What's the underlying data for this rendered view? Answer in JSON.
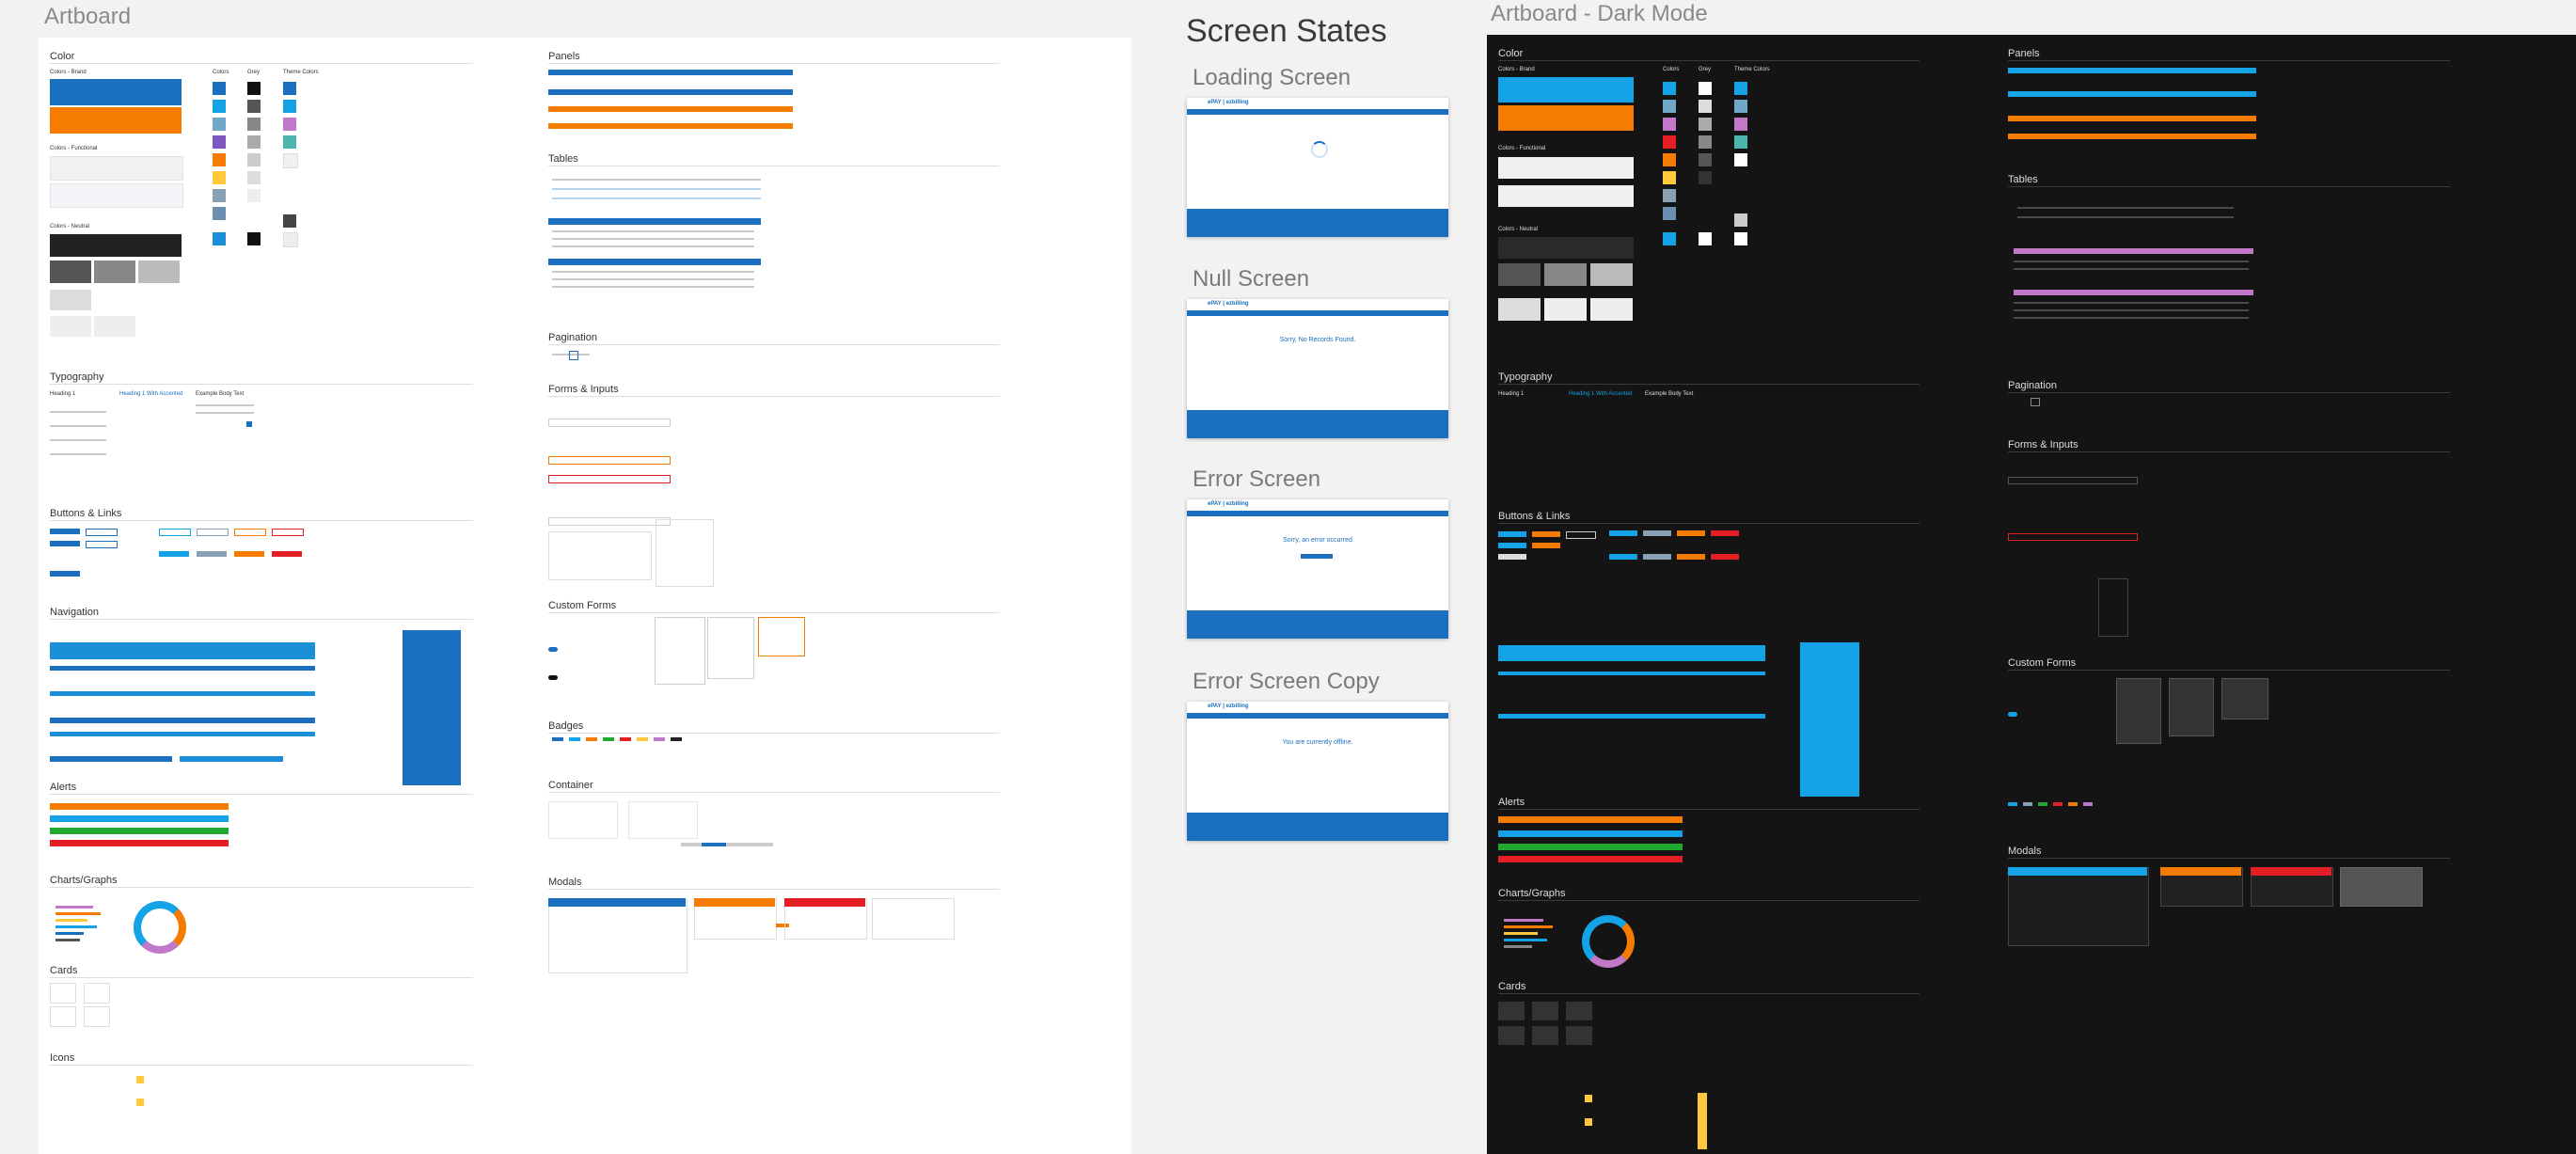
{
  "artboard": {
    "title": "Artboard",
    "sections": {
      "color": "Color",
      "panels": "Panels",
      "tables": "Tables",
      "pagination": "Pagination",
      "typography": "Typography",
      "forms": "Forms & Inputs",
      "buttons": "Buttons & Links",
      "navigation": "Navigation",
      "custom_forms": "Custom Forms",
      "badges": "Badges",
      "alerts": "Alerts",
      "container": "Container",
      "charts": "Charts/Graphs",
      "modals": "Modals",
      "cards": "Cards",
      "icons": "Icons"
    },
    "color_subsections": {
      "brand": "Colors - Brand",
      "functional": "Colors - Functional",
      "neutral": "Colors - Neutral"
    },
    "column_headers": {
      "colors": "Colors",
      "grey": "Grey",
      "theme": "Theme Colors"
    },
    "typography_samples": {
      "heading": "Heading 1",
      "heading_accent": "Heading 1 With Accented",
      "body": "Example Body Text"
    }
  },
  "screen_states": {
    "title": "Screen States",
    "states": [
      {
        "label": "Loading Screen",
        "message": ""
      },
      {
        "label": "Null Screen",
        "message": "Sorry, No Records Found."
      },
      {
        "label": "Error Screen",
        "message": "Sorry, an error occurred"
      },
      {
        "label": "Error Screen Copy",
        "message": "You are currently offline."
      }
    ]
  },
  "dark_artboard": {
    "title": "Artboard - Dark Mode",
    "sections": {
      "color": "Color",
      "panels": "Panels",
      "tables": "Tables",
      "pagination": "Pagination",
      "typography": "Typography",
      "forms": "Forms & Inputs",
      "buttons": "Buttons & Links",
      "custom_forms": "Custom Forms",
      "alerts": "Alerts",
      "charts": "Charts/Graphs",
      "modals": "Modals",
      "cards": "Cards"
    },
    "color_subsections": {
      "brand": "Colors - Brand",
      "functional": "Colors - Functional",
      "neutral": "Colors - Neutral"
    },
    "column_headers": {
      "colors": "Colors",
      "grey": "Grey",
      "theme": "Theme Colors"
    },
    "typography_samples": {
      "heading": "Heading 1",
      "heading_accent": "Heading 1 With Accented",
      "body": "Example Body Text"
    }
  },
  "colors": {
    "brand_blue": "#1a6fbf",
    "brand_orange": "#f57c00",
    "sky": "#13a3e6",
    "success": "#21a830",
    "danger": "#e31e24",
    "dark_bg": "#141414",
    "canvas": "#f2f2f2"
  }
}
